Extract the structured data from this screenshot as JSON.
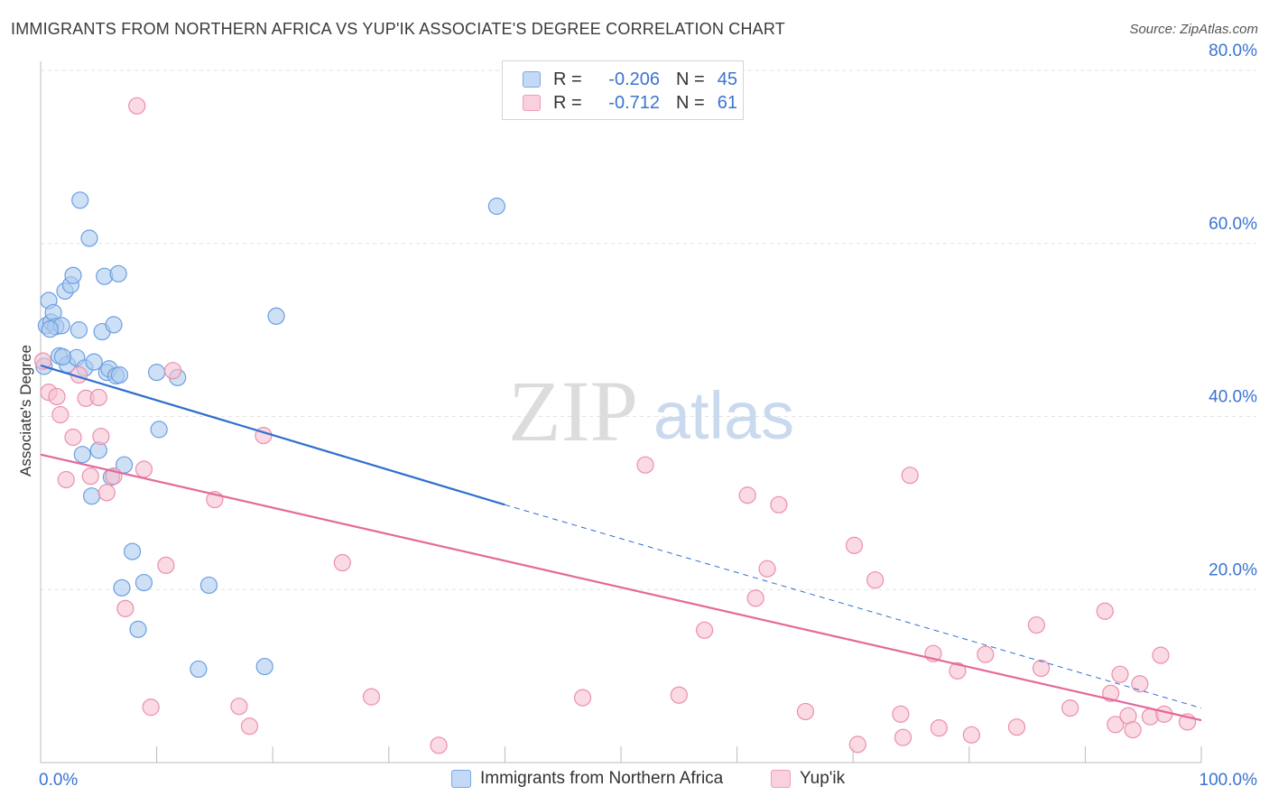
{
  "title": "IMMIGRANTS FROM NORTHERN AFRICA VS YUP'IK ASSOCIATE'S DEGREE CORRELATION CHART",
  "source": "Source: ZipAtlas.com",
  "watermark": {
    "zip": "ZIP",
    "atlas": "atlas"
  },
  "legend": {
    "r_label": "R =",
    "n_label": "N =",
    "rows": [
      {
        "r": "-0.206",
        "n": "45"
      },
      {
        "r": "-0.712",
        "n": "61"
      }
    ]
  },
  "colors": {
    "blue_fill": "#aecbf0",
    "blue_stroke": "#6b9fe0",
    "blue_line": "#2f6fd0",
    "pink_fill": "#f6c1d1",
    "pink_stroke": "#eb8fae",
    "pink_line": "#e4699a",
    "axis_text": "#3b73d1",
    "grid": "#e3e3e3"
  },
  "chart_data": {
    "type": "scatter",
    "title": "IMMIGRANTS FROM NORTHERN AFRICA VS YUP'IK ASSOCIATE'S DEGREE CORRELATION CHART",
    "xlabel": "",
    "ylabel": "Associate's Degree",
    "xlim": [
      0,
      100
    ],
    "ylim": [
      0,
      80
    ],
    "x_tick_labels": [
      "0.0%",
      "100.0%"
    ],
    "y_ticks": [
      20,
      40,
      60,
      80
    ],
    "y_tick_labels": [
      "20.0%",
      "40.0%",
      "60.0%",
      "80.0%"
    ],
    "grid": true,
    "legend_position": "top-center",
    "series": [
      {
        "name": "Immigrants from Northern Africa",
        "color": "#aecbf0",
        "trend": {
          "x": [
            0,
            40
          ],
          "y": [
            45.9,
            29.8
          ],
          "dashed_to": [
            100,
            6.3
          ]
        },
        "points": [
          [
            0.3,
            45.8
          ],
          [
            0.5,
            50.5
          ],
          [
            0.7,
            53.4
          ],
          [
            0.9,
            50.9
          ],
          [
            1.1,
            52.0
          ],
          [
            1.3,
            50.4
          ],
          [
            1.6,
            47.0
          ],
          [
            1.8,
            50.5
          ],
          [
            2.1,
            54.5
          ],
          [
            2.3,
            46.0
          ],
          [
            2.6,
            55.2
          ],
          [
            2.8,
            56.3
          ],
          [
            3.1,
            46.8
          ],
          [
            3.3,
            50.0
          ],
          [
            3.4,
            65.0
          ],
          [
            3.6,
            35.6
          ],
          [
            3.8,
            45.6
          ],
          [
            4.2,
            60.6
          ],
          [
            4.4,
            30.8
          ],
          [
            4.6,
            46.3
          ],
          [
            5.0,
            36.1
          ],
          [
            5.3,
            49.8
          ],
          [
            5.5,
            56.2
          ],
          [
            5.7,
            45.1
          ],
          [
            5.9,
            45.5
          ],
          [
            6.1,
            33.0
          ],
          [
            6.3,
            50.6
          ],
          [
            6.5,
            44.7
          ],
          [
            6.7,
            56.5
          ],
          [
            7.0,
            20.2
          ],
          [
            7.2,
            34.4
          ],
          [
            7.9,
            24.4
          ],
          [
            8.4,
            15.4
          ],
          [
            8.9,
            20.8
          ],
          [
            10.0,
            45.1
          ],
          [
            10.2,
            38.5
          ],
          [
            11.8,
            44.5
          ],
          [
            13.6,
            10.8
          ],
          [
            14.5,
            20.5
          ],
          [
            19.3,
            11.1
          ],
          [
            20.3,
            51.6
          ],
          [
            39.3,
            64.3
          ],
          [
            0.8,
            50.1
          ],
          [
            1.9,
            46.9
          ],
          [
            6.8,
            44.8
          ]
        ]
      },
      {
        "name": "Yup'ik",
        "color": "#f6c1d1",
        "trend": {
          "x": [
            0,
            100
          ],
          "y": [
            35.6,
            4.9
          ]
        },
        "points": [
          [
            0.2,
            46.4
          ],
          [
            0.7,
            42.8
          ],
          [
            1.4,
            42.3
          ],
          [
            1.7,
            40.2
          ],
          [
            2.2,
            32.7
          ],
          [
            2.8,
            37.6
          ],
          [
            3.3,
            44.8
          ],
          [
            3.9,
            42.1
          ],
          [
            4.3,
            33.1
          ],
          [
            5.0,
            42.2
          ],
          [
            5.2,
            37.7
          ],
          [
            5.7,
            31.2
          ],
          [
            6.3,
            33.1
          ],
          [
            7.3,
            17.8
          ],
          [
            8.3,
            75.9
          ],
          [
            8.9,
            33.9
          ],
          [
            9.5,
            6.4
          ],
          [
            10.8,
            22.8
          ],
          [
            11.4,
            45.3
          ],
          [
            15.0,
            30.4
          ],
          [
            17.1,
            6.5
          ],
          [
            18.0,
            4.2
          ],
          [
            19.2,
            37.8
          ],
          [
            26.0,
            23.1
          ],
          [
            28.5,
            7.6
          ],
          [
            34.3,
            2.0
          ],
          [
            46.7,
            7.5
          ],
          [
            52.1,
            34.4
          ],
          [
            55.0,
            7.8
          ],
          [
            57.2,
            15.3
          ],
          [
            60.9,
            30.9
          ],
          [
            61.6,
            19.0
          ],
          [
            62.6,
            22.4
          ],
          [
            63.6,
            29.8
          ],
          [
            65.9,
            5.9
          ],
          [
            70.1,
            25.1
          ],
          [
            70.4,
            2.1
          ],
          [
            71.9,
            21.1
          ],
          [
            74.1,
            5.6
          ],
          [
            74.3,
            2.9
          ],
          [
            74.9,
            33.2
          ],
          [
            76.9,
            12.6
          ],
          [
            77.4,
            4.0
          ],
          [
            79.0,
            10.6
          ],
          [
            80.2,
            3.2
          ],
          [
            81.4,
            12.5
          ],
          [
            84.1,
            4.1
          ],
          [
            85.8,
            15.9
          ],
          [
            86.2,
            10.9
          ],
          [
            88.7,
            6.3
          ],
          [
            91.7,
            17.5
          ],
          [
            92.2,
            8.0
          ],
          [
            92.6,
            4.4
          ],
          [
            93.0,
            10.2
          ],
          [
            93.7,
            5.4
          ],
          [
            94.1,
            3.8
          ],
          [
            94.7,
            9.1
          ],
          [
            95.6,
            5.3
          ],
          [
            96.5,
            12.4
          ],
          [
            96.8,
            5.6
          ],
          [
            98.8,
            4.7
          ]
        ]
      }
    ]
  }
}
